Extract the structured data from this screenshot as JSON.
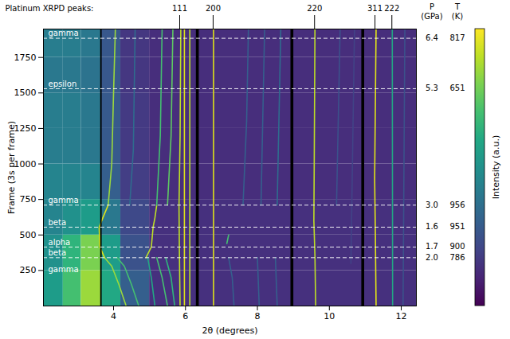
{
  "chart_data": {
    "type": "heatmap",
    "xlabel": "2θ (degrees)",
    "ylabel": "Frame (3s per frame)",
    "xlim": [
      2.05,
      12.42
    ],
    "xticks": [
      4,
      6,
      8,
      10,
      12
    ],
    "ylim": [
      0,
      1950
    ],
    "yticks": [
      250,
      500,
      750,
      1000,
      1250,
      1500,
      1750
    ],
    "reference_title": "Platinum XRPD peaks:",
    "reference_peaks": [
      {
        "label": "111",
        "x": 5.85
      },
      {
        "label": "200",
        "x": 6.78
      },
      {
        "label": "220",
        "x": 9.6
      },
      {
        "label": "311",
        "x": 11.28
      },
      {
        "label": "222",
        "x": 11.75
      }
    ],
    "p_header": [
      "P",
      "(GPa)"
    ],
    "t_header": [
      "T",
      "(K)"
    ],
    "dashed_lines": [
      {
        "frame": 1885,
        "P": 6.4,
        "T": 817
      },
      {
        "frame": 1530,
        "P": 5.3,
        "T": 651
      },
      {
        "frame": 710,
        "P": {
          "value": 3.0,
          "label": "3.0"
        },
        "T": 956
      },
      {
        "frame": 555,
        "P": 1.6,
        "T": 951
      },
      {
        "frame": 415,
        "P": 1.7,
        "T": 900
      },
      {
        "frame": 340,
        "P": {
          "value": 2.0,
          "label": "2.0"
        },
        "T": 786
      }
    ],
    "phase_labels": [
      {
        "label": "gamma",
        "frame": 1890
      },
      {
        "label": "epsilon",
        "frame": 1535
      },
      {
        "label": "gamma",
        "frame": 715
      },
      {
        "label": "beta",
        "frame": 560
      },
      {
        "label": "alpha",
        "frame": 420
      },
      {
        "label": "beta",
        "frame": 345
      },
      {
        "label": "gamma",
        "frame": 225
      }
    ],
    "colorbar": {
      "label": "Intensity (a.u.)",
      "range": [
        0,
        1
      ],
      "ticks": []
    },
    "cells": {
      "x_edges": [
        2.05,
        2.6,
        3.1,
        3.65,
        4.2,
        5.0,
        12.42
      ],
      "y_edges": [
        0,
        250,
        500,
        750,
        1000,
        1250,
        1500,
        1750,
        1950
      ],
      "values": [
        [
          0.55,
          0.7,
          0.85,
          0.6,
          0.3,
          0.14
        ],
        [
          0.5,
          0.65,
          0.8,
          0.55,
          0.25,
          0.14
        ],
        [
          0.45,
          0.5,
          0.55,
          0.4,
          0.22,
          0.14
        ],
        [
          0.45,
          0.45,
          0.45,
          0.3,
          0.18,
          0.13
        ],
        [
          0.42,
          0.42,
          0.4,
          0.28,
          0.17,
          0.13
        ],
        [
          0.42,
          0.42,
          0.4,
          0.28,
          0.17,
          0.13
        ],
        [
          0.4,
          0.4,
          0.38,
          0.27,
          0.16,
          0.13
        ],
        [
          0.42,
          0.42,
          0.4,
          0.27,
          0.16,
          0.13
        ]
      ]
    },
    "masked_bands": [
      [
        3.64,
        3.68
      ],
      [
        6.3,
        6.38
      ],
      [
        8.93,
        9.01
      ],
      [
        10.9,
        10.98
      ]
    ],
    "traces": [
      {
        "intensity": 0.9,
        "points": [
          [
            5.85,
            0
          ],
          [
            5.83,
            400
          ],
          [
            5.82,
            700
          ],
          [
            5.85,
            1200
          ],
          [
            5.87,
            1950
          ]
        ]
      },
      {
        "intensity": 0.95,
        "points": [
          [
            5.97,
            0
          ],
          [
            5.97,
            1950
          ]
        ]
      },
      {
        "intensity": 0.9,
        "points": [
          [
            6.12,
            0
          ],
          [
            6.12,
            1950
          ]
        ]
      },
      {
        "intensity": 0.95,
        "points": [
          [
            6.78,
            0
          ],
          [
            6.78,
            1950
          ]
        ]
      },
      {
        "intensity": 0.9,
        "points": [
          [
            9.62,
            0
          ],
          [
            9.6,
            350
          ],
          [
            9.57,
            600
          ],
          [
            9.58,
            1000
          ],
          [
            9.6,
            1950
          ]
        ]
      },
      {
        "intensity": 0.95,
        "points": [
          [
            11.3,
            0
          ],
          [
            11.28,
            500
          ],
          [
            11.26,
            900
          ],
          [
            11.3,
            1950
          ]
        ]
      },
      {
        "intensity": 0.6,
        "points": [
          [
            11.76,
            0
          ],
          [
            11.75,
            1950
          ]
        ]
      },
      {
        "intensity": 0.85,
        "points": [
          [
            4.35,
            0
          ],
          [
            4.15,
            150
          ],
          [
            3.95,
            280
          ],
          [
            3.75,
            340
          ]
        ]
      },
      {
        "intensity": 0.7,
        "points": [
          [
            4.7,
            0
          ],
          [
            4.5,
            150
          ],
          [
            4.3,
            280
          ],
          [
            4.1,
            340
          ]
        ]
      },
      {
        "intensity": 0.6,
        "points": [
          [
            5.15,
            0
          ],
          [
            5.05,
            200
          ],
          [
            4.95,
            340
          ]
        ]
      },
      {
        "intensity": 0.7,
        "points": [
          [
            5.5,
            0
          ],
          [
            5.35,
            200
          ],
          [
            5.2,
            340
          ]
        ]
      },
      {
        "intensity": 0.65,
        "points": [
          [
            5.7,
            0
          ],
          [
            5.6,
            200
          ],
          [
            5.45,
            340
          ]
        ]
      },
      {
        "intensity": 0.3,
        "points": [
          [
            7.35,
            0
          ],
          [
            7.3,
            200
          ],
          [
            7.2,
            340
          ]
        ]
      },
      {
        "intensity": 0.3,
        "points": [
          [
            8.05,
            0
          ],
          [
            8.0,
            340
          ]
        ]
      },
      {
        "intensity": 0.3,
        "points": [
          [
            8.55,
            0
          ],
          [
            8.5,
            340
          ]
        ]
      },
      {
        "intensity": 0.95,
        "points": [
          [
            3.75,
            340
          ],
          [
            3.62,
            415
          ],
          [
            3.6,
            555
          ],
          [
            3.7,
            620
          ],
          [
            3.85,
            710
          ]
        ]
      },
      {
        "intensity": 0.9,
        "points": [
          [
            4.9,
            340
          ],
          [
            5.05,
            415
          ],
          [
            5.1,
            555
          ],
          [
            5.15,
            620
          ],
          [
            5.2,
            710
          ]
        ]
      },
      {
        "intensity": 0.7,
        "points": [
          [
            7.15,
            440
          ],
          [
            7.2,
            500
          ]
        ]
      },
      {
        "intensity": 0.85,
        "points": [
          [
            3.85,
            710
          ],
          [
            3.95,
            1000
          ],
          [
            4.0,
            1500
          ],
          [
            4.05,
            1950
          ]
        ]
      },
      {
        "intensity": 0.35,
        "points": [
          [
            4.45,
            710
          ],
          [
            4.55,
            1100
          ],
          [
            4.6,
            1950
          ]
        ]
      },
      {
        "intensity": 0.7,
        "points": [
          [
            5.2,
            710
          ],
          [
            5.3,
            1200
          ],
          [
            5.35,
            1950
          ]
        ]
      },
      {
        "intensity": 0.75,
        "points": [
          [
            5.5,
            710
          ],
          [
            5.6,
            1200
          ],
          [
            5.65,
            1950
          ]
        ]
      },
      {
        "intensity": 0.3,
        "points": [
          [
            7.6,
            710
          ],
          [
            7.7,
            1300
          ],
          [
            7.75,
            1950
          ]
        ]
      },
      {
        "intensity": 0.3,
        "points": [
          [
            8.1,
            710
          ],
          [
            8.2,
            1950
          ]
        ]
      },
      {
        "intensity": 0.35,
        "points": [
          [
            8.55,
            710
          ],
          [
            8.65,
            1950
          ]
        ]
      },
      {
        "intensity": 0.25,
        "points": [
          [
            10.2,
            710
          ],
          [
            10.3,
            1950
          ]
        ]
      },
      {
        "intensity": 0.2,
        "points": [
          [
            10.6,
            300
          ],
          [
            10.7,
            1950
          ]
        ]
      },
      {
        "intensity": 0.25,
        "points": [
          [
            12.05,
            0
          ],
          [
            12.1,
            1950
          ]
        ]
      }
    ]
  }
}
